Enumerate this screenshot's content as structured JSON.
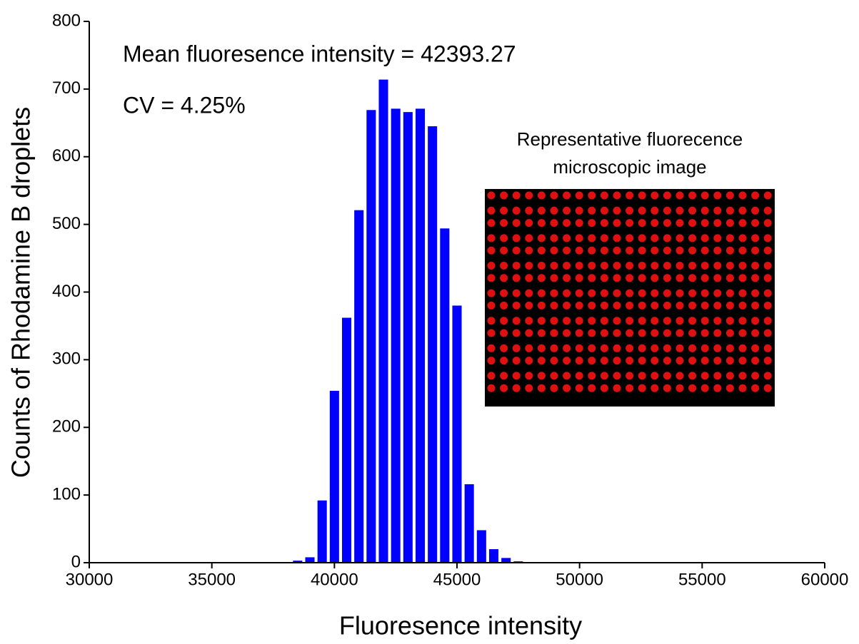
{
  "chart_data": {
    "type": "histogram",
    "x_label": "Fluoresence intensity",
    "y_label": "Counts of Rhodamine B droplets",
    "annotations": [
      "Mean fluoresence intensity = 42393.27",
      "CV = 4.25%"
    ],
    "inset_title": [
      "Representative fluorecence",
      "microscopic image"
    ],
    "bins": [
      38250,
      38750,
      39250,
      39750,
      40250,
      40750,
      41250,
      41750,
      42250,
      42750,
      43250,
      43750,
      44250,
      44750,
      45250,
      45750,
      46250,
      46750,
      47250,
      47750
    ],
    "values": [
      3,
      8,
      92,
      254,
      362,
      521,
      669,
      714,
      671,
      666,
      671,
      645,
      494,
      380,
      116,
      48,
      20,
      7,
      2
    ],
    "color": "#0000ff",
    "xlim": [
      30000,
      60000
    ],
    "xticks": [
      30000,
      35000,
      40000,
      45000,
      50000,
      55000,
      60000
    ],
    "ylim": [
      0,
      800
    ],
    "yticks": [
      0,
      100,
      200,
      300,
      400,
      500,
      600,
      700,
      800
    ]
  }
}
